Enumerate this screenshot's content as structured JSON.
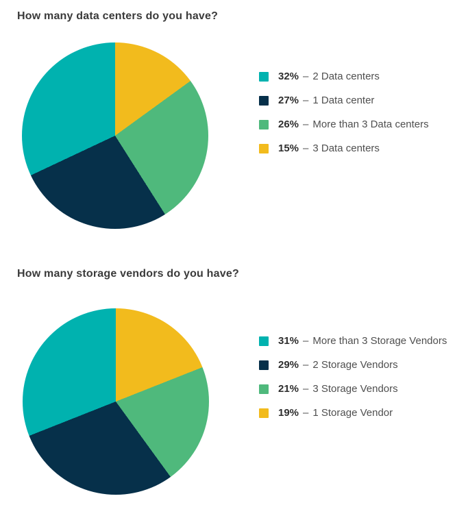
{
  "page": {
    "background": "#ffffff"
  },
  "colors": {
    "teal": "#00b2af",
    "navy": "#06304a",
    "green": "#4fb97c",
    "yellow": "#f2bb1d",
    "title_text": "#3a3a3a",
    "legend_value_text": "#2e2e2e",
    "legend_label_text": "#4f4f4f"
  },
  "chart_data": [
    {
      "type": "pie",
      "title": "How many data centers do you have?",
      "start_angle_deg": 0,
      "direction": "clockwise",
      "legend_position": "right",
      "slices": [
        {
          "label": "3 Data centers",
          "value": 15,
          "color": "#f2bb1d"
        },
        {
          "label": "More than 3 Data centers",
          "value": 26,
          "color": "#4fb97c"
        },
        {
          "label": "1 Data center",
          "value": 27,
          "color": "#06304a"
        },
        {
          "label": "2 Data centers",
          "value": 32,
          "color": "#00b2af"
        }
      ],
      "legend": [
        {
          "value_label": "32%",
          "separator": "–",
          "text": "2 Data centers",
          "color": "#00b2af"
        },
        {
          "value_label": "27%",
          "separator": "–",
          "text": "1 Data center",
          "color": "#06304a"
        },
        {
          "value_label": "26%",
          "separator": "–",
          "text": "More than 3 Data centers",
          "color": "#4fb97c"
        },
        {
          "value_label": "15%",
          "separator": "–",
          "text": "3 Data centers",
          "color": "#f2bb1d"
        }
      ]
    },
    {
      "type": "pie",
      "title": "How many storage vendors do you have?",
      "start_angle_deg": 0,
      "direction": "clockwise",
      "legend_position": "right",
      "slices": [
        {
          "label": "1 Storage Vendor",
          "value": 19,
          "color": "#f2bb1d"
        },
        {
          "label": "3 Storage Vendors",
          "value": 21,
          "color": "#4fb97c"
        },
        {
          "label": "2 Storage Vendors",
          "value": 29,
          "color": "#06304a"
        },
        {
          "label": "More than 3 Storage Vendors",
          "value": 31,
          "color": "#00b2af"
        }
      ],
      "legend": [
        {
          "value_label": "31%",
          "separator": "–",
          "text": "More than 3 Storage Vendors",
          "color": "#00b2af"
        },
        {
          "value_label": "29%",
          "separator": "–",
          "text": "2 Storage Vendors",
          "color": "#06304a"
        },
        {
          "value_label": "21%",
          "separator": "–",
          "text": "3 Storage Vendors",
          "color": "#4fb97c"
        },
        {
          "value_label": "19%",
          "separator": "–",
          "text": "1 Storage Vendor",
          "color": "#f2bb1d"
        }
      ]
    }
  ]
}
